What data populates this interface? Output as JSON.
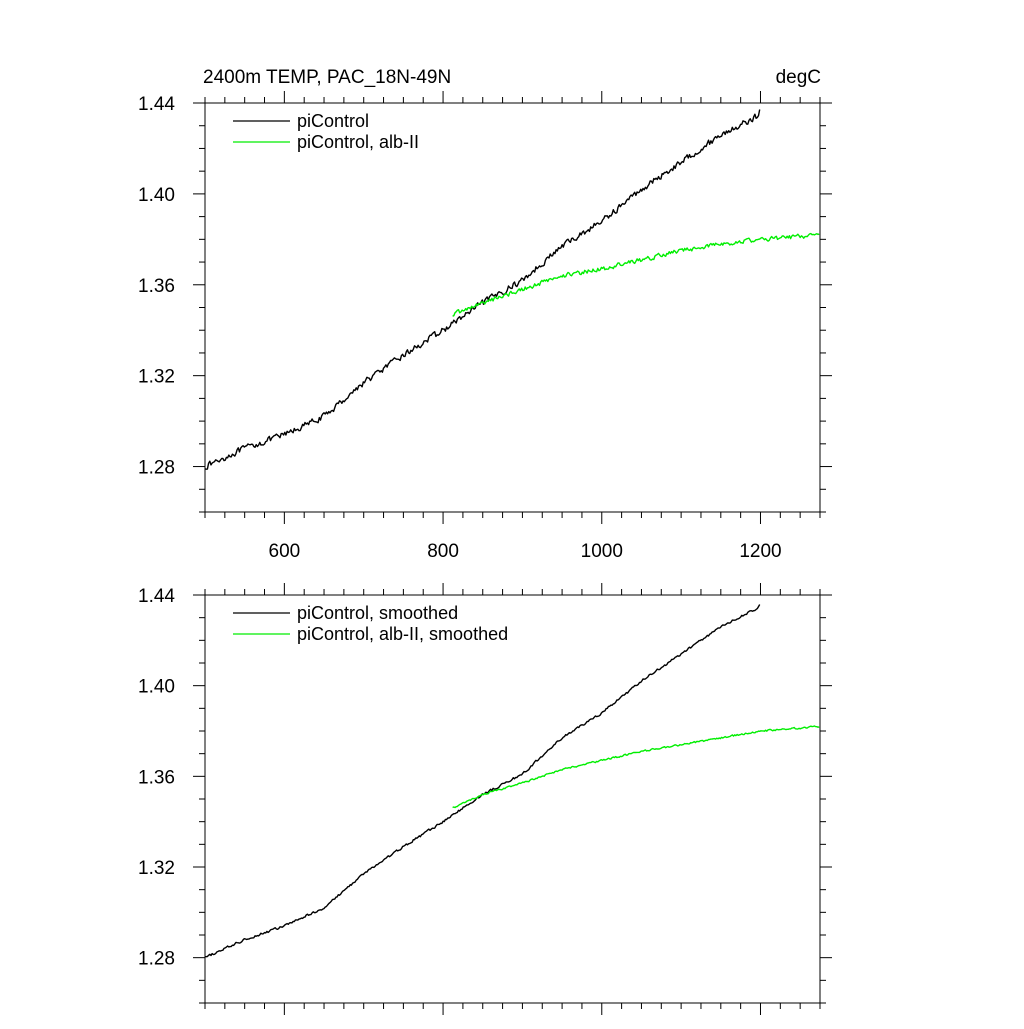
{
  "chart_data": [
    {
      "type": "line",
      "title_left": "2400m TEMP, PAC_18N-49N",
      "title_right": "degC",
      "xlim": [
        500,
        1275
      ],
      "ylim": [
        1.26,
        1.44
      ],
      "xticks": [
        600,
        800,
        1000,
        1200
      ],
      "xtick_labels": [
        "600",
        "800",
        "1000",
        "1200"
      ],
      "yticks": [
        1.28,
        1.32,
        1.36,
        1.4,
        1.44
      ],
      "ytick_labels": [
        "1.28",
        "1.32",
        "1.36",
        "1.40",
        "1.44"
      ],
      "legend_position": "top-left",
      "series": [
        {
          "name": "piControl",
          "color": "#000000",
          "noise": 0.0018,
          "points": [
            [
              500,
              1.28
            ],
            [
              550,
              1.288
            ],
            [
              600,
              1.294
            ],
            [
              650,
              1.302
            ],
            [
              700,
              1.317
            ],
            [
              750,
              1.329
            ],
            [
              800,
              1.34
            ],
            [
              850,
              1.352
            ],
            [
              900,
              1.362
            ],
            [
              950,
              1.377
            ],
            [
              1000,
              1.388
            ],
            [
              1050,
              1.402
            ],
            [
              1100,
              1.414
            ],
            [
              1150,
              1.426
            ],
            [
              1195,
              1.434
            ],
            [
              1200,
              1.437
            ]
          ]
        },
        {
          "name": "piControl, alb-II",
          "color": "#00ee00",
          "noise": 0.0013,
          "points": [
            [
              812,
              1.347
            ],
            [
              850,
              1.352
            ],
            [
              900,
              1.358
            ],
            [
              950,
              1.364
            ],
            [
              1000,
              1.367
            ],
            [
              1050,
              1.371
            ],
            [
              1100,
              1.375
            ],
            [
              1150,
              1.378
            ],
            [
              1200,
              1.38
            ],
            [
              1275,
              1.382
            ]
          ]
        }
      ]
    },
    {
      "type": "line",
      "xlim": [
        500,
        1275
      ],
      "ylim": [
        1.26,
        1.44
      ],
      "xticks": [
        600,
        800,
        1000,
        1200
      ],
      "yticks": [
        1.28,
        1.32,
        1.36,
        1.4,
        1.44
      ],
      "ytick_labels": [
        "1.28",
        "1.32",
        "1.36",
        "1.40",
        "1.44"
      ],
      "legend_position": "top-left",
      "series": [
        {
          "name": "piControl, smoothed",
          "color": "#000000",
          "noise": 0.0007,
          "points": [
            [
              500,
              1.28
            ],
            [
              550,
              1.288
            ],
            [
              600,
              1.294
            ],
            [
              650,
              1.302
            ],
            [
              700,
              1.317
            ],
            [
              750,
              1.329
            ],
            [
              800,
              1.34
            ],
            [
              850,
              1.352
            ],
            [
              900,
              1.361
            ],
            [
              950,
              1.377
            ],
            [
              1000,
              1.388
            ],
            [
              1050,
              1.402
            ],
            [
              1100,
              1.414
            ],
            [
              1150,
              1.426
            ],
            [
              1195,
              1.434
            ],
            [
              1200,
              1.436
            ]
          ]
        },
        {
          "name": "piControl, alb-II, smoothed",
          "color": "#00ee00",
          "noise": 0.0005,
          "points": [
            [
              812,
              1.346
            ],
            [
              850,
              1.352
            ],
            [
              900,
              1.357
            ],
            [
              950,
              1.363
            ],
            [
              1000,
              1.367
            ],
            [
              1050,
              1.371
            ],
            [
              1100,
              1.374
            ],
            [
              1150,
              1.377
            ],
            [
              1200,
              1.38
            ],
            [
              1275,
              1.382
            ]
          ]
        }
      ]
    }
  ]
}
